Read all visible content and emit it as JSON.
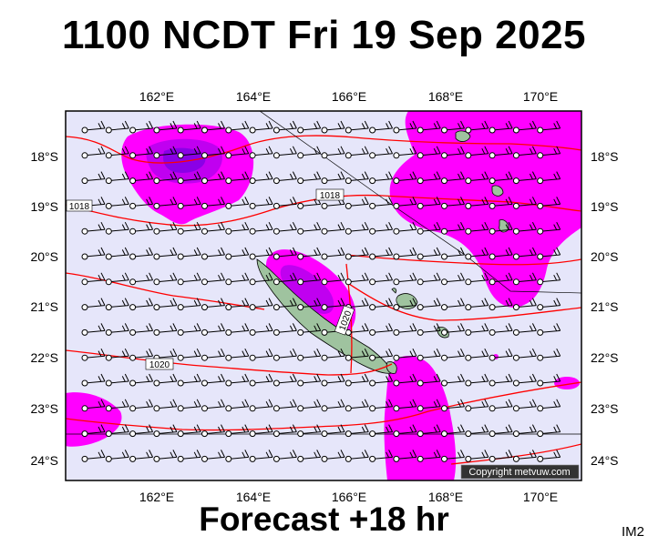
{
  "header": {
    "title": "1100 NCDT Fri 19 Sep 2025"
  },
  "footer": {
    "forecast": "Forecast +18 hr",
    "code": "IM2",
    "copyright": "Copyright metvuw.com"
  },
  "map": {
    "lon_ticks": [
      "162°E",
      "164°E",
      "166°E",
      "168°E",
      "170°E"
    ],
    "lat_ticks": [
      "18°S",
      "19°S",
      "20°S",
      "21°S",
      "22°S",
      "23°S",
      "24°S"
    ],
    "isobar_labels": [
      "1018",
      "1018",
      "1020",
      "1020"
    ],
    "colors": {
      "background": "#e6e6fa",
      "rain_light": "#ff00ff",
      "rain_medium": "#c000f0",
      "rain_heavy": "#8a00e6",
      "isobar": "#ff0000",
      "land": "#9fc39f"
    }
  }
}
